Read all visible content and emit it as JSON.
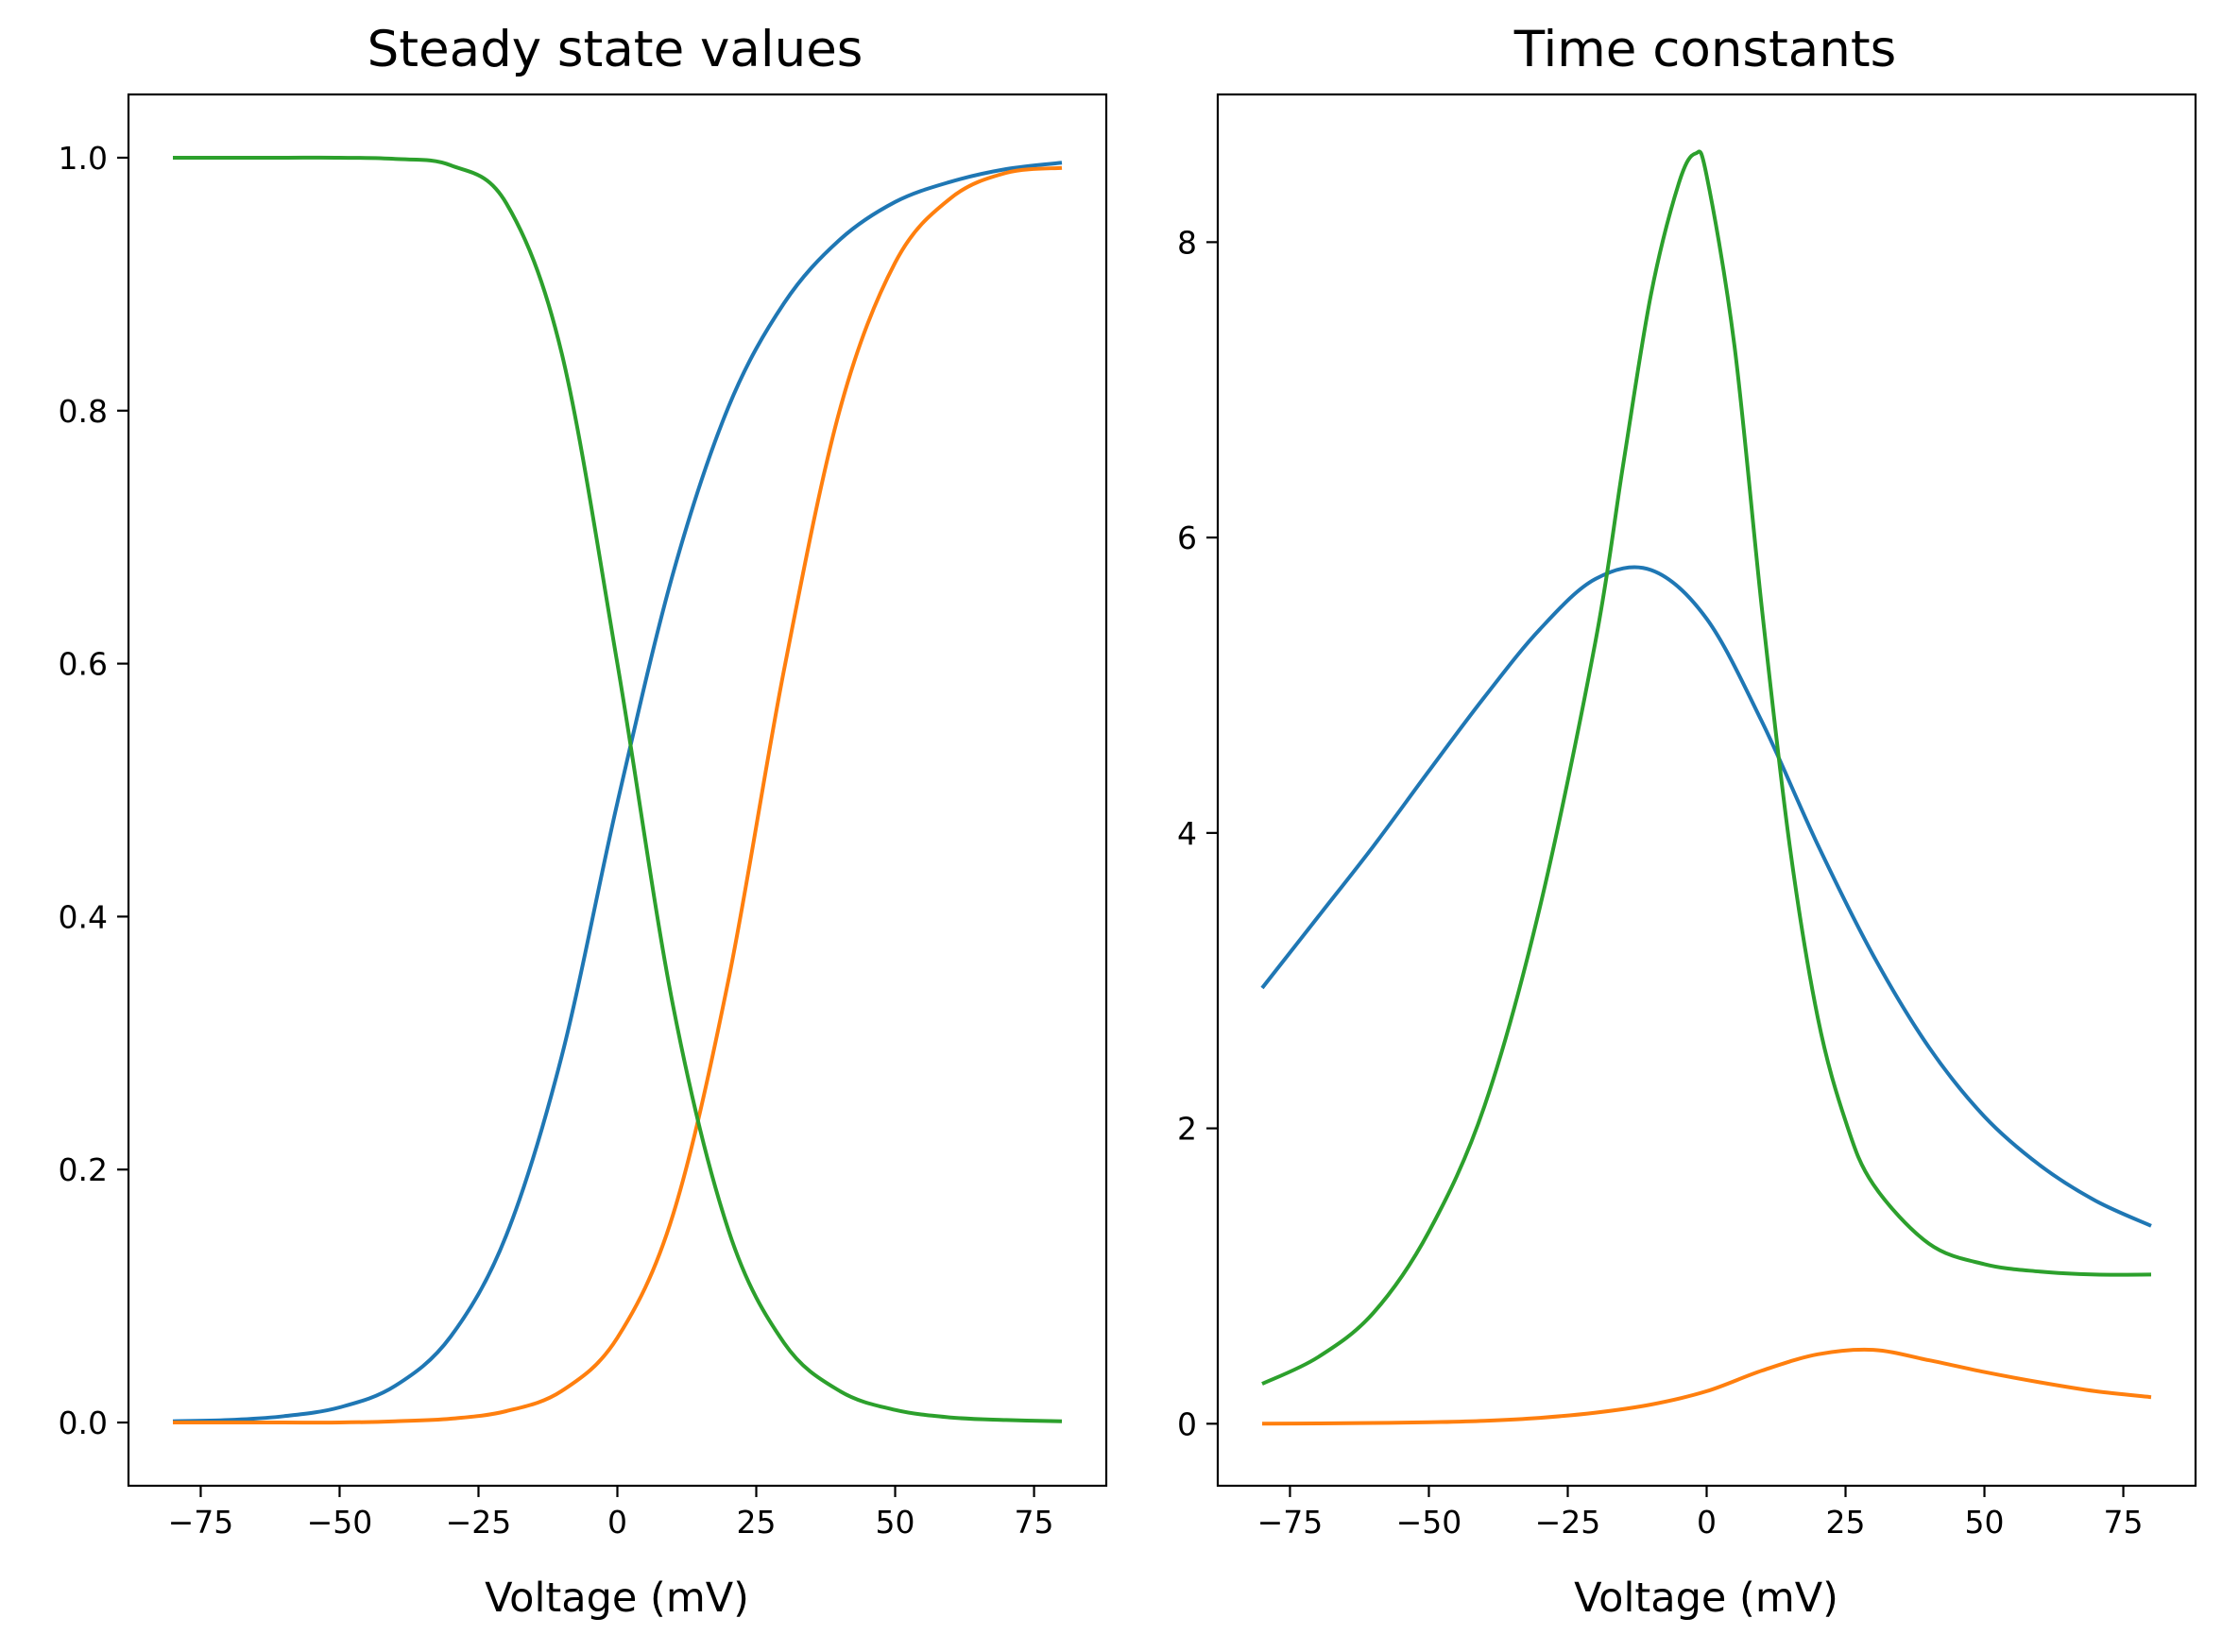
{
  "chart_data": [
    {
      "type": "line",
      "title": "Steady state values",
      "xlabel": "Voltage (mV)",
      "ylabel": "",
      "xlim": [
        -88,
        88
      ],
      "ylim": [
        -0.05,
        1.05
      ],
      "xticks": [
        -75,
        -50,
        -25,
        0,
        25,
        50,
        75
      ],
      "xtick_labels": [
        "−75",
        "−50",
        "−25",
        "0",
        "25",
        "50",
        "75"
      ],
      "yticks": [
        0.0,
        0.2,
        0.4,
        0.6,
        0.8,
        1.0
      ],
      "ytick_labels": [
        "0.0",
        "0.2",
        "0.4",
        "0.6",
        "0.8",
        "1.0"
      ],
      "grid": false,
      "legend": "none",
      "series": [
        {
          "color": "#1f77b4",
          "x": [
            -80,
            -70,
            -60,
            -50,
            -40,
            -30,
            -20,
            -10,
            0,
            10,
            20,
            30,
            40,
            50,
            60,
            70,
            80
          ],
          "y": [
            0.001,
            0.002,
            0.005,
            0.012,
            0.029,
            0.068,
            0.148,
            0.29,
            0.49,
            0.671,
            0.803,
            0.885,
            0.935,
            0.965,
            0.981,
            0.991,
            0.996
          ]
        },
        {
          "color": "#ff7f0e",
          "x": [
            -80,
            -70,
            -60,
            -50,
            -40,
            -30,
            -20,
            -10,
            0,
            10,
            20,
            30,
            40,
            50,
            60,
            70,
            80
          ],
          "y": [
            0.0,
            0.0,
            0.0,
            0.0,
            0.001,
            0.003,
            0.009,
            0.025,
            0.067,
            0.164,
            0.35,
            0.595,
            0.8,
            0.917,
            0.968,
            0.988,
            0.992
          ]
        },
        {
          "color": "#2ca02c",
          "x": [
            -80,
            -70,
            -60,
            -50,
            -40,
            -30,
            -20,
            -10,
            0,
            10,
            20,
            30,
            40,
            50,
            60,
            70,
            80
          ],
          "y": [
            1.0,
            1.0,
            1.0,
            1.0,
            0.999,
            0.994,
            0.964,
            0.845,
            0.6,
            0.33,
            0.152,
            0.063,
            0.025,
            0.01,
            0.004,
            0.002,
            0.001
          ]
        }
      ]
    },
    {
      "type": "line",
      "title": "Time constants",
      "xlabel": "Voltage (mV)",
      "ylabel": "",
      "xlim": [
        -88,
        88
      ],
      "ylim": [
        -0.42,
        9.0
      ],
      "xticks": [
        -75,
        -50,
        -25,
        0,
        25,
        50,
        75
      ],
      "xtick_labels": [
        "−75",
        "−50",
        "−25",
        "0",
        "25",
        "50",
        "75"
      ],
      "yticks": [
        0,
        2,
        4,
        6,
        8
      ],
      "ytick_labels": [
        "0",
        "2",
        "4",
        "6",
        "8"
      ],
      "grid": false,
      "legend": "none",
      "series": [
        {
          "color": "#1f77b4",
          "x": [
            -80,
            -70,
            -60,
            -50,
            -40,
            -30,
            -20,
            -10,
            0,
            10,
            20,
            30,
            40,
            50,
            60,
            70,
            80
          ],
          "y": [
            2.95,
            3.43,
            3.91,
            4.42,
            4.92,
            5.38,
            5.72,
            5.78,
            5.45,
            4.75,
            3.92,
            3.17,
            2.55,
            2.08,
            1.75,
            1.51,
            1.34
          ]
        },
        {
          "color": "#ff7f0e",
          "x": [
            -80,
            -70,
            -60,
            -50,
            -40,
            -30,
            -20,
            -10,
            0,
            10,
            20,
            30,
            40,
            50,
            60,
            70,
            80
          ],
          "y": [
            0.0,
            0.002,
            0.005,
            0.01,
            0.02,
            0.04,
            0.075,
            0.13,
            0.22,
            0.36,
            0.47,
            0.5,
            0.43,
            0.35,
            0.28,
            0.22,
            0.18
          ]
        },
        {
          "color": "#2ca02c",
          "x": [
            -80,
            -70,
            -60,
            -50,
            -40,
            -30,
            -20,
            -15,
            -10,
            -5,
            -2,
            0,
            5,
            10,
            15,
            20,
            25,
            30,
            40,
            50,
            60,
            70,
            80
          ],
          "y": [
            0.27,
            0.45,
            0.75,
            1.3,
            2.15,
            3.5,
            5.3,
            6.5,
            7.65,
            8.4,
            8.6,
            8.45,
            7.3,
            5.5,
            3.9,
            2.75,
            2.05,
            1.62,
            1.22,
            1.08,
            1.03,
            1.01,
            1.01
          ]
        }
      ]
    }
  ]
}
